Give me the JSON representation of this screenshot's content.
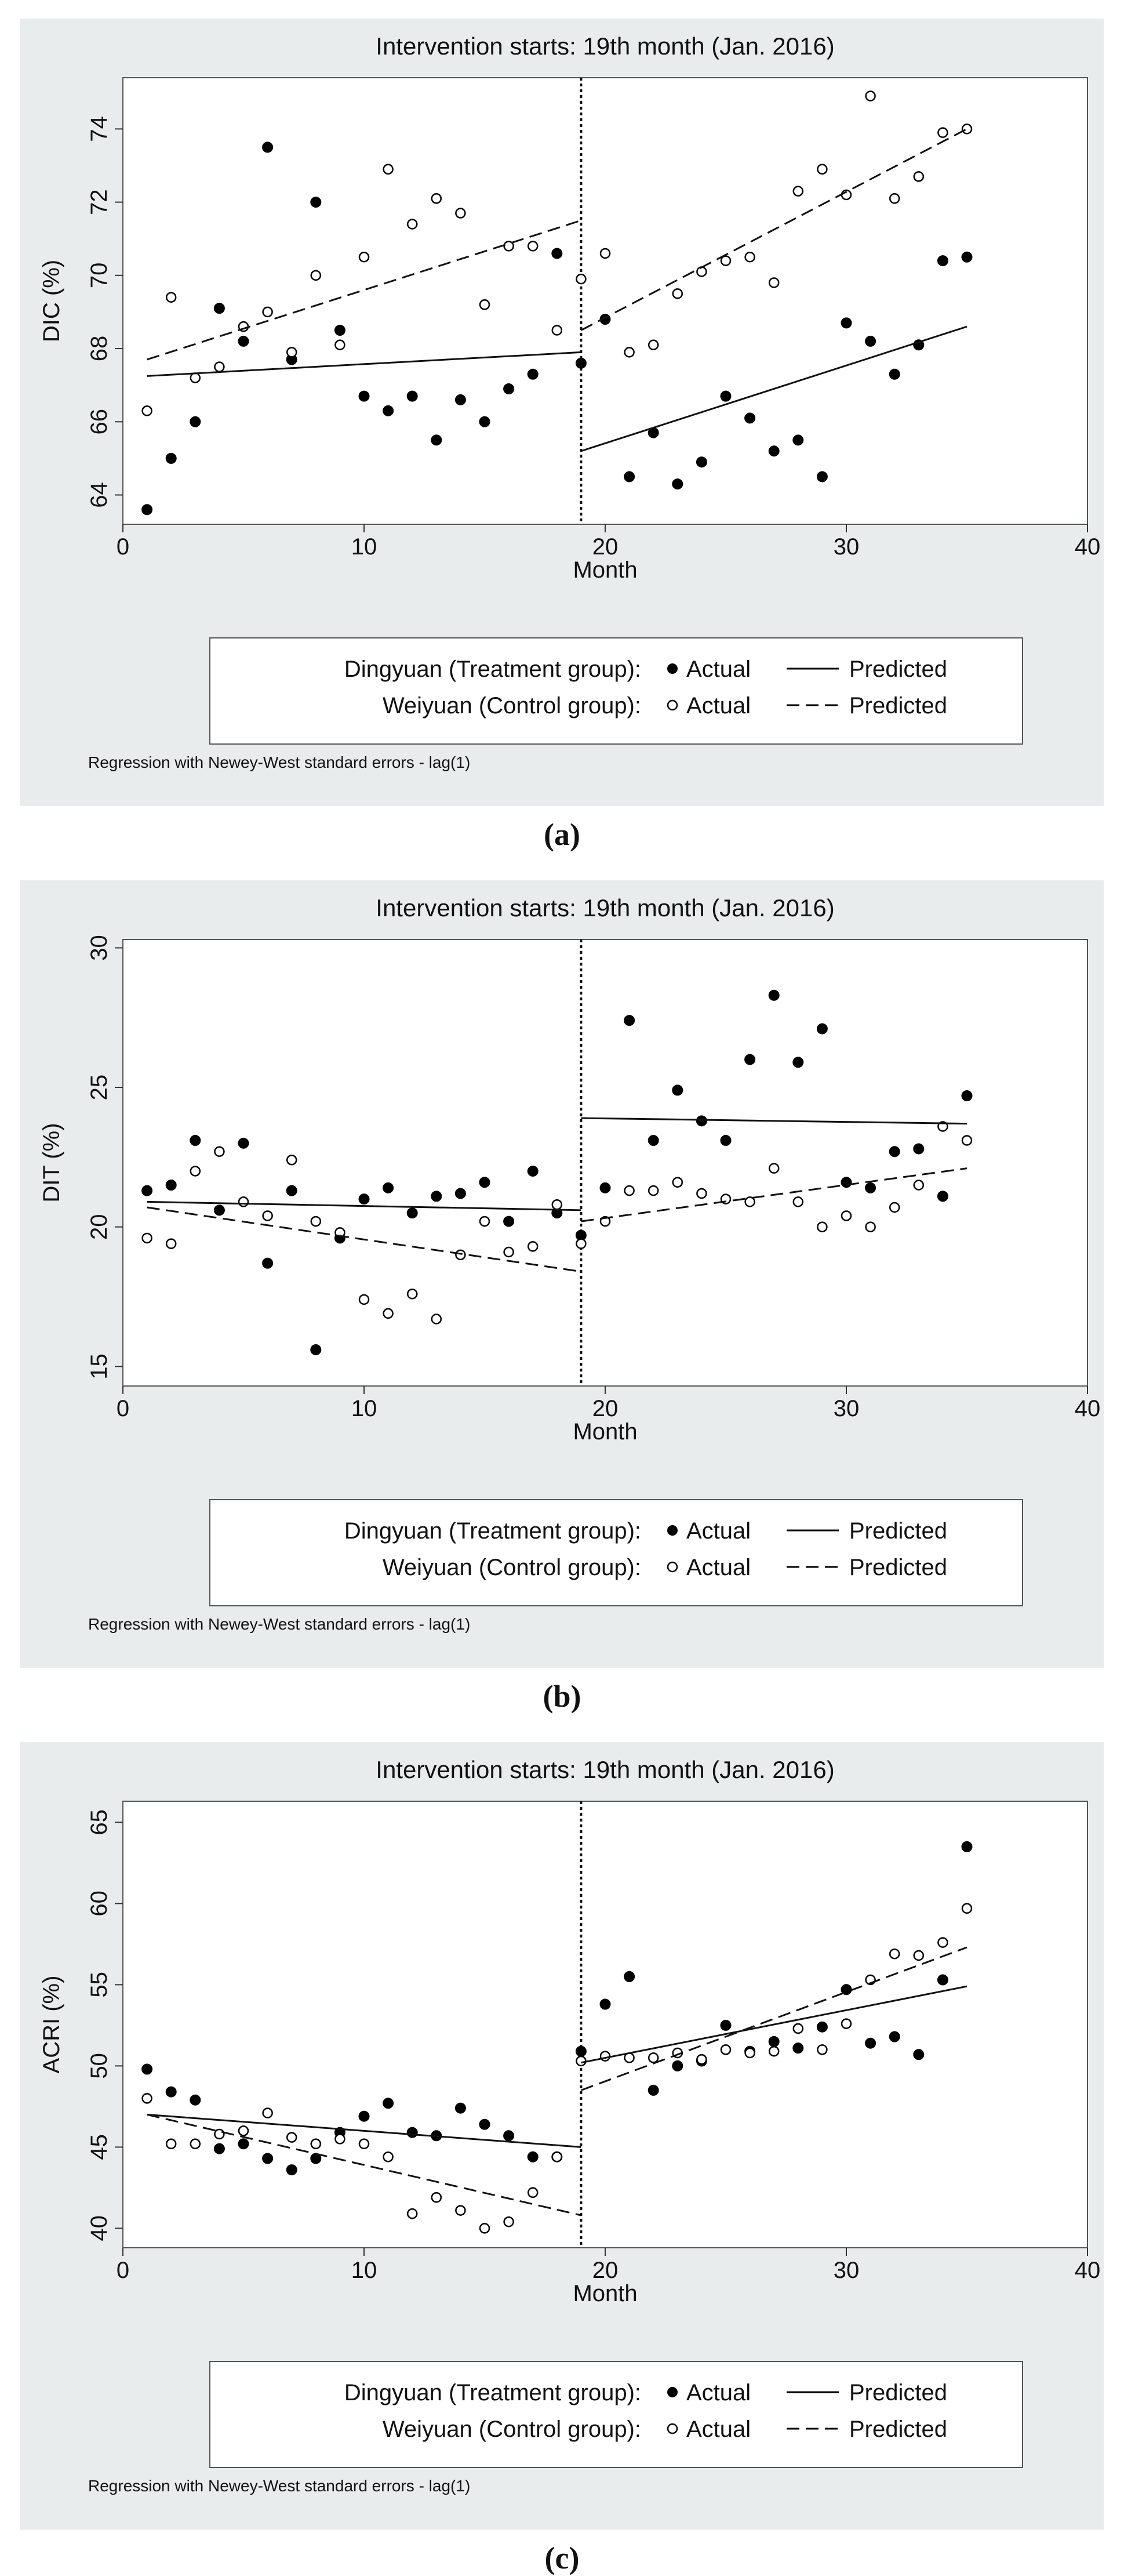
{
  "figure": {
    "legend": {
      "treatment_label": "Dingyuan (Treatment group):",
      "control_label": "Weiyuan (Control group):",
      "actual_label": "Actual",
      "predicted_label": "Predicted"
    },
    "note": "Regression with Newey-West standard errors - lag(1)"
  },
  "chart_data": [
    {
      "type": "scatter",
      "panel_label": "(a)",
      "title": "Intervention starts: 19th month (Jan. 2016)",
      "xlabel": "Month",
      "ylabel": "DIC (%)",
      "xlim": [
        0,
        40
      ],
      "ylim": [
        63.2,
        75.4
      ],
      "xticks": [
        0,
        10,
        20,
        30,
        40
      ],
      "yticks": [
        64,
        66,
        68,
        70,
        72,
        74
      ],
      "intervention_x": 19,
      "series": [
        {
          "name": "Dingyuan Actual",
          "marker": "filled",
          "x": [
            1,
            2,
            3,
            4,
            5,
            6,
            7,
            8,
            9,
            10,
            11,
            12,
            13,
            14,
            15,
            16,
            17,
            18,
            19,
            20,
            21,
            22,
            23,
            24,
            25,
            26,
            27,
            28,
            29,
            30,
            31,
            32,
            33,
            34,
            35
          ],
          "y": [
            63.6,
            65.0,
            66.0,
            69.1,
            68.2,
            73.5,
            67.7,
            72.0,
            68.5,
            66.7,
            66.3,
            66.7,
            65.5,
            66.6,
            66.0,
            66.9,
            67.3,
            70.6,
            67.6,
            68.8,
            64.5,
            65.7,
            64.3,
            64.9,
            66.7,
            66.1,
            65.2,
            65.5,
            64.5,
            68.7,
            68.2,
            67.3,
            68.1,
            70.4,
            70.5
          ]
        },
        {
          "name": "Weiyuan Actual",
          "marker": "hollow",
          "x": [
            1,
            2,
            3,
            4,
            5,
            6,
            7,
            8,
            9,
            10,
            11,
            12,
            13,
            14,
            15,
            16,
            17,
            18,
            19,
            20,
            21,
            22,
            23,
            24,
            25,
            26,
            27,
            28,
            29,
            30,
            31,
            32,
            33,
            34,
            35
          ],
          "y": [
            66.3,
            69.4,
            67.2,
            67.5,
            68.6,
            69.0,
            67.9,
            70.0,
            68.1,
            70.5,
            72.9,
            71.4,
            72.1,
            71.7,
            69.2,
            70.8,
            70.8,
            68.5,
            69.9,
            70.6,
            67.9,
            68.1,
            69.5,
            70.1,
            70.4,
            70.5,
            69.8,
            72.3,
            72.9,
            72.2,
            74.9,
            72.1,
            72.7,
            73.9,
            74.0
          ]
        },
        {
          "name": "Dingyuan Predicted",
          "line": "solid",
          "segments": [
            [
              [
                1,
                67.25
              ],
              [
                19,
                67.9
              ]
            ],
            [
              [
                19,
                65.2
              ],
              [
                35,
                68.6
              ]
            ]
          ]
        },
        {
          "name": "Weiyuan Predicted",
          "line": "dashed",
          "segments": [
            [
              [
                1,
                67.7
              ],
              [
                19,
                71.5
              ]
            ],
            [
              [
                19,
                68.5
              ],
              [
                35,
                74.0
              ]
            ]
          ]
        }
      ]
    },
    {
      "type": "scatter",
      "panel_label": "(b)",
      "title": "Intervention starts: 19th month (Jan. 2016)",
      "xlabel": "Month",
      "ylabel": "DIT (%)",
      "xlim": [
        0,
        40
      ],
      "ylim": [
        14.3,
        30.3
      ],
      "xticks": [
        0,
        10,
        20,
        30,
        40
      ],
      "yticks": [
        15,
        20,
        25,
        30
      ],
      "intervention_x": 19,
      "series": [
        {
          "name": "Dingyuan Actual",
          "marker": "filled",
          "x": [
            1,
            2,
            3,
            4,
            5,
            6,
            7,
            8,
            9,
            10,
            11,
            12,
            13,
            14,
            15,
            16,
            17,
            18,
            19,
            20,
            21,
            22,
            23,
            24,
            25,
            26,
            27,
            28,
            29,
            30,
            31,
            32,
            33,
            34,
            35
          ],
          "y": [
            21.3,
            21.5,
            23.1,
            20.6,
            23.0,
            18.7,
            21.3,
            15.6,
            19.6,
            21.0,
            21.4,
            20.5,
            21.1,
            21.2,
            21.6,
            20.2,
            22.0,
            20.5,
            19.7,
            21.4,
            27.4,
            23.1,
            24.9,
            23.8,
            23.1,
            26.0,
            28.3,
            25.9,
            27.1,
            21.6,
            21.4,
            22.7,
            22.8,
            21.1,
            24.7
          ]
        },
        {
          "name": "Weiyuan Actual",
          "marker": "hollow",
          "x": [
            1,
            2,
            3,
            4,
            5,
            6,
            7,
            8,
            9,
            10,
            11,
            12,
            13,
            14,
            15,
            16,
            17,
            18,
            19,
            20,
            21,
            22,
            23,
            24,
            25,
            26,
            27,
            28,
            29,
            30,
            31,
            32,
            33,
            34,
            35
          ],
          "y": [
            19.6,
            19.4,
            22.0,
            22.7,
            20.9,
            20.4,
            22.4,
            20.2,
            19.8,
            17.4,
            16.9,
            17.6,
            16.7,
            19.0,
            20.2,
            19.1,
            19.3,
            20.8,
            19.4,
            20.2,
            21.3,
            21.3,
            21.6,
            21.2,
            21.0,
            20.9,
            22.1,
            20.9,
            20.0,
            20.4,
            20.0,
            20.7,
            21.5,
            23.6,
            23.1
          ]
        },
        {
          "name": "Dingyuan Predicted",
          "line": "solid",
          "segments": [
            [
              [
                1,
                20.9
              ],
              [
                19,
                20.6
              ]
            ],
            [
              [
                19,
                23.9
              ],
              [
                35,
                23.7
              ]
            ]
          ]
        },
        {
          "name": "Weiyuan Predicted",
          "line": "dashed",
          "segments": [
            [
              [
                1,
                20.7
              ],
              [
                19,
                18.4
              ]
            ],
            [
              [
                19,
                20.2
              ],
              [
                35,
                22.1
              ]
            ]
          ]
        }
      ]
    },
    {
      "type": "scatter",
      "panel_label": "(c)",
      "title": "Intervention starts: 19th month (Jan. 2016)",
      "xlabel": "Month",
      "ylabel": "ACRI (%)",
      "xlim": [
        0,
        40
      ],
      "ylim": [
        38.8,
        66.3
      ],
      "xticks": [
        0,
        10,
        20,
        30,
        40
      ],
      "yticks": [
        40,
        45,
        50,
        55,
        60,
        65
      ],
      "intervention_x": 19,
      "series": [
        {
          "name": "Dingyuan Actual",
          "marker": "filled",
          "x": [
            1,
            2,
            3,
            4,
            5,
            6,
            7,
            8,
            9,
            10,
            11,
            12,
            13,
            14,
            15,
            16,
            17,
            18,
            19,
            20,
            21,
            22,
            23,
            24,
            25,
            26,
            27,
            28,
            29,
            30,
            31,
            32,
            33,
            34,
            35
          ],
          "y": [
            49.8,
            48.4,
            47.9,
            44.9,
            45.2,
            44.3,
            43.6,
            44.3,
            45.9,
            46.9,
            47.7,
            45.9,
            45.7,
            47.4,
            46.4,
            45.7,
            44.4,
            44.4,
            50.9,
            53.8,
            55.5,
            48.5,
            50.0,
            50.3,
            52.5,
            50.9,
            51.5,
            51.1,
            52.4,
            54.7,
            51.4,
            51.8,
            50.7,
            55.3,
            63.5
          ]
        },
        {
          "name": "Weiyuan Actual",
          "marker": "hollow",
          "x": [
            1,
            2,
            3,
            4,
            5,
            6,
            7,
            8,
            9,
            10,
            11,
            12,
            13,
            14,
            15,
            16,
            17,
            18,
            19,
            20,
            21,
            22,
            23,
            24,
            25,
            26,
            27,
            28,
            29,
            30,
            31,
            32,
            33,
            34,
            35
          ],
          "y": [
            48.0,
            45.2,
            45.2,
            45.8,
            46.0,
            47.1,
            45.6,
            45.2,
            45.5,
            45.2,
            44.4,
            40.9,
            41.9,
            41.1,
            40.0,
            40.4,
            42.2,
            44.4,
            50.3,
            50.6,
            50.5,
            50.5,
            50.8,
            50.4,
            51.0,
            50.8,
            50.9,
            52.3,
            51.0,
            52.6,
            55.3,
            56.9,
            56.8,
            57.6,
            59.7
          ]
        },
        {
          "name": "Dingyuan Predicted",
          "line": "solid",
          "segments": [
            [
              [
                1,
                47.0
              ],
              [
                19,
                45.0
              ]
            ],
            [
              [
                19,
                50.2
              ],
              [
                35,
                54.9
              ]
            ]
          ]
        },
        {
          "name": "Weiyuan Predicted",
          "line": "dashed",
          "segments": [
            [
              [
                1,
                47.0
              ],
              [
                19,
                40.8
              ]
            ],
            [
              [
                19,
                48.5
              ],
              [
                35,
                57.3
              ]
            ]
          ]
        }
      ]
    }
  ]
}
